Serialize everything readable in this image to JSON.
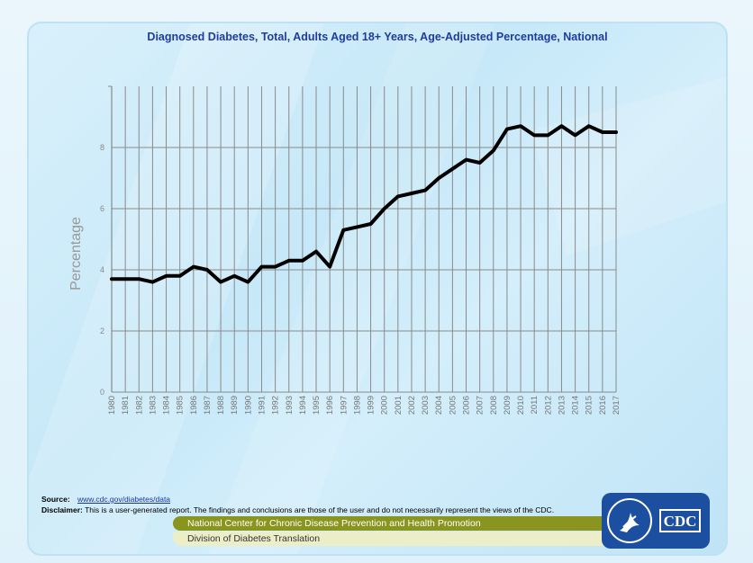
{
  "chart_data": {
    "type": "line",
    "title": "Diagnosed Diabetes, Total, Adults Aged 18+ Years, Age-Adjusted Percentage, National",
    "xlabel": "",
    "ylabel": "Percentage",
    "ylim": [
      0,
      10
    ],
    "yticks": [
      0,
      2,
      4,
      6,
      8
    ],
    "grid": true,
    "x": [
      "1980",
      "1981",
      "1982",
      "1983",
      "1984",
      "1985",
      "1986",
      "1987",
      "1988",
      "1989",
      "1990",
      "1991",
      "1992",
      "1993",
      "1994",
      "1995",
      "1996",
      "1997",
      "1998",
      "1999",
      "2000",
      "2001",
      "2002",
      "2003",
      "2004",
      "2005",
      "2006",
      "2007",
      "2008",
      "2009",
      "2010",
      "2011",
      "2012",
      "2013",
      "2014",
      "2015",
      "2016",
      "2017"
    ],
    "series": [
      {
        "name": "Diagnosed Diabetes",
        "color": "#000000",
        "values": [
          3.7,
          3.7,
          3.7,
          3.6,
          3.8,
          3.8,
          4.1,
          4.0,
          3.6,
          3.8,
          3.6,
          4.1,
          4.1,
          4.3,
          4.3,
          4.6,
          4.1,
          5.3,
          5.4,
          5.5,
          6.0,
          6.4,
          6.5,
          6.6,
          7.0,
          7.3,
          7.6,
          7.5,
          7.9,
          8.6,
          8.7,
          8.4,
          8.4,
          8.7,
          8.4,
          8.7,
          8.5,
          8.5
        ]
      }
    ]
  },
  "footer": {
    "source_label": "Source:",
    "source_link": "www.cdc.gov/diabetes/data",
    "disclaimer_label": "Disclaimer:",
    "disclaimer_text": "This is a user-generated report. The findings and conclusions are those of the user and do not necessarily represent the views of the CDC.",
    "center_name": "National Center for Chronic Disease Prevention and Health Promotion",
    "division_name": "Division of Diabetes Translation"
  },
  "logo": {
    "text": "CDC",
    "icon": "hhs-eagle-icon"
  }
}
